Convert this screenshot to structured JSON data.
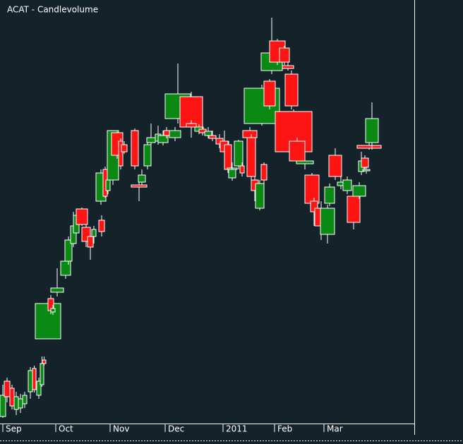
{
  "chart_data": {
    "type": "candlevolume",
    "title": "ACAT - Candlevolume",
    "up_color": "#0a8a14",
    "down_color": "#ff1414",
    "xlim": [
      0,
      587
    ],
    "ylim": [
      0,
      600
    ],
    "xticks": [
      {
        "value": 8,
        "label": "Sep"
      },
      {
        "value": 83,
        "label": "Oct"
      },
      {
        "value": 160,
        "label": "Nov"
      },
      {
        "value": 238,
        "label": "Dec"
      },
      {
        "value": 320,
        "label": "2011"
      },
      {
        "value": 393,
        "label": "Feb"
      },
      {
        "value": 463,
        "label": "Mar"
      }
    ],
    "x": [
      0,
      6,
      14,
      20,
      26,
      32,
      40,
      46,
      52,
      57,
      60,
      50,
      68,
      72,
      72,
      86,
      92,
      100,
      104,
      108,
      116,
      124,
      130,
      140,
      136,
      146,
      150,
      152,
      158,
      168,
      172,
      186,
      186,
      196,
      204,
      208,
      220,
      224,
      232,
      240,
      234,
      255,
      264,
      276,
      282,
      290,
      296,
      306,
      312,
      318,
      322,
      324,
      332,
      340,
      344,
      350,
      356,
      362,
      370,
      346,
      374,
      370,
      382,
      396,
      400,
      404,
      390,
      410,
      420,
      432,
      440,
      446,
      454,
      460,
      466,
      478,
      486,
      492,
      500,
      508,
      512,
      514,
      506,
      518
    ],
    "volume": [
      8,
      8,
      6,
      6,
      6,
      6,
      6,
      5,
      6,
      5,
      5,
      36,
      8,
      6,
      18,
      14,
      10,
      8,
      8,
      16,
      12,
      8,
      6,
      8,
      14,
      6,
      6,
      16,
      16,
      6,
      8,
      10,
      22,
      10,
      10,
      12,
      8,
      14,
      8,
      16,
      36,
      32,
      14,
      12,
      10,
      10,
      10,
      10,
      12,
      10,
      14,
      10,
      12,
      6,
      20,
      12,
      10,
      12,
      8,
      50,
      16,
      30,
      22,
      14,
      16,
      18,
      52,
      22,
      24,
      20,
      10,
      18,
      20,
      14,
      18,
      10,
      12,
      18,
      18,
      8,
      10,
      10,
      34,
      18
    ],
    "open": [
      10,
      60,
      50,
      20,
      22,
      28,
      45,
      78,
      40,
      55,
      90,
      120,
      177,
      158,
      186,
      210,
      230,
      255,
      270,
      304,
      278,
      265,
      265,
      288,
      315,
      360,
      330,
      345,
      412,
      400,
      395,
      415,
      338,
      342,
      365,
      398,
      400,
      398,
      415,
      405,
      432,
      463,
      425,
      414,
      417,
      408,
      408,
      404,
      400,
      395,
      360,
      348,
      365,
      365,
      415,
      405,
      345,
      305,
      367,
      425,
      485,
      500,
      542,
      532,
      507,
      495,
      442,
      400,
      368,
      352,
      315,
      305,
      268,
      312,
      380,
      337,
      330,
      322,
      322,
      357,
      376,
      358,
      394,
      398
    ],
    "high": [
      55,
      65,
      55,
      45,
      42,
      45,
      80,
      82,
      65,
      95,
      95,
      172,
      182,
      168,
      220,
      240,
      265,
      300,
      302,
      306,
      282,
      270,
      280,
      295,
      360,
      364,
      350,
      415,
      414,
      404,
      400,
      418,
      350,
      360,
      405,
      425,
      422,
      415,
      420,
      420,
      510,
      470,
      430,
      424,
      422,
      420,
      415,
      410,
      415,
      400,
      370,
      365,
      402,
      370,
      420,
      410,
      350,
      345,
      370,
      480,
      488,
      575,
      545,
      535,
      512,
      500,
      445,
      405,
      378,
      355,
      320,
      315,
      310,
      340,
      390,
      350,
      350,
      335,
      342,
      385,
      380,
      364,
      400,
      455
    ],
    "low": [
      8,
      30,
      20,
      12,
      15,
      22,
      35,
      44,
      35,
      52,
      82,
      120,
      155,
      154,
      180,
      205,
      225,
      250,
      265,
      280,
      250,
      232,
      255,
      265,
      310,
      320,
      325,
      338,
      375,
      360,
      382,
      360,
      315,
      338,
      360,
      395,
      395,
      394,
      404,
      400,
      425,
      405,
      414,
      410,
      408,
      404,
      400,
      390,
      380,
      355,
      352,
      344,
      360,
      350,
      402,
      345,
      315,
      302,
      338,
      422,
      445,
      495,
      508,
      508,
      500,
      445,
      382,
      368,
      360,
      308,
      280,
      260,
      255,
      308,
      345,
      332,
      325,
      275,
      318,
      352,
      360,
      354,
      388,
      388
    ],
    "close": [
      40,
      38,
      25,
      38,
      35,
      40,
      75,
      48,
      60,
      85,
      85,
      170,
      160,
      163,
      192,
      230,
      260,
      280,
      295,
      282,
      258,
      250,
      275,
      272,
      355,
      322,
      345,
      415,
      380,
      365,
      385,
      365,
      335,
      352,
      395,
      405,
      410,
      408,
      408,
      415,
      467,
      420,
      420,
      420,
      412,
      414,
      404,
      396,
      385,
      360,
      362,
      360,
      400,
      355,
      405,
      350,
      330,
      340,
      345,
      475,
      450,
      525,
      512,
      512,
      503,
      450,
      385,
      372,
      372,
      312,
      300,
      280,
      305,
      335,
      350,
      342,
      345,
      285,
      337,
      372,
      363,
      360,
      390,
      432
    ]
  }
}
